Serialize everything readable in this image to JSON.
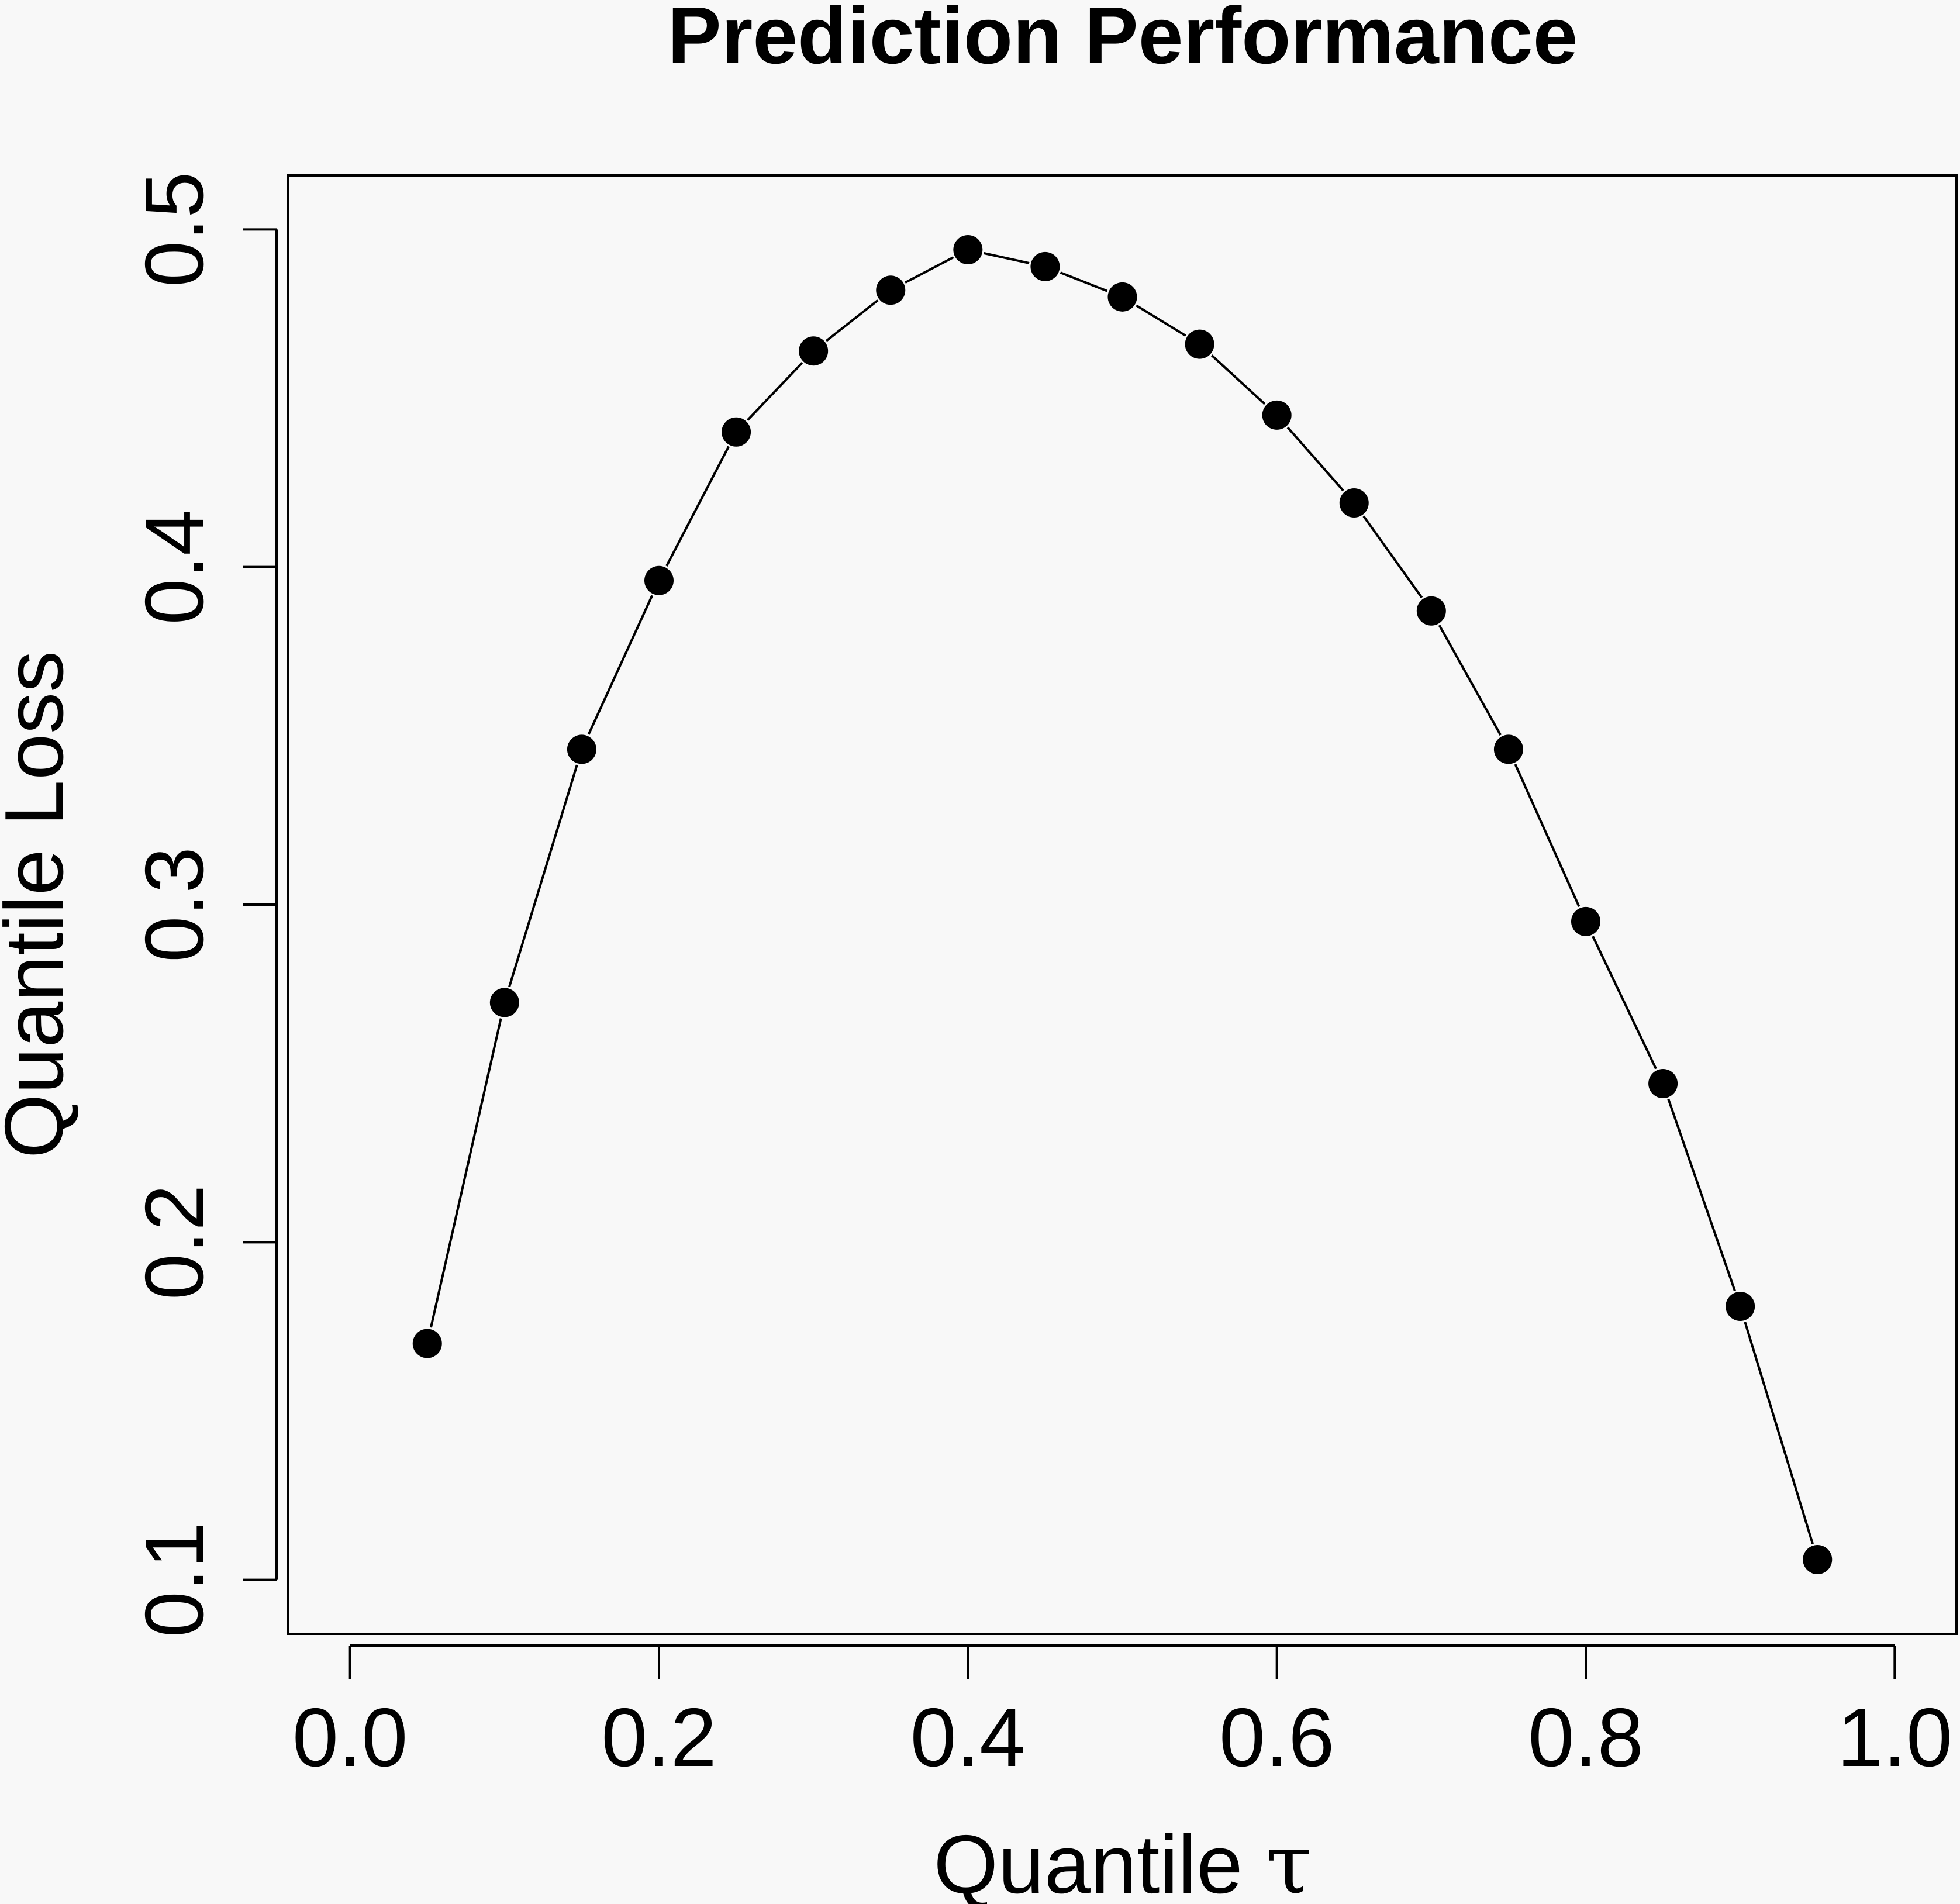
{
  "chart_data": {
    "type": "line",
    "title": "Prediction Performance",
    "xlabel": "Quantile τ",
    "ylabel": "Quantile Loss",
    "xlim": [
      -0.04,
      1.04
    ],
    "ylim": [
      0.084,
      0.516
    ],
    "x_ticks": [
      0.0,
      0.2,
      0.4,
      0.6,
      0.8,
      1.0
    ],
    "x_tick_labels": [
      "0.0",
      "0.2",
      "0.4",
      "0.6",
      "0.8",
      "1.0"
    ],
    "y_ticks": [
      0.1,
      0.2,
      0.3,
      0.4,
      0.5
    ],
    "y_tick_labels": [
      "0.1",
      "0.2",
      "0.3",
      "0.4",
      "0.5"
    ],
    "grid": false,
    "legend": "none",
    "marker": "filled-circle",
    "line_color": "#000000",
    "marker_color": "#000000",
    "background_color": "#f8f8f8",
    "series": [
      {
        "x": [
          0.05,
          0.1,
          0.15,
          0.2,
          0.25,
          0.3,
          0.35,
          0.4,
          0.45,
          0.5,
          0.55,
          0.6,
          0.65,
          0.7,
          0.75,
          0.8,
          0.85,
          0.9,
          0.95
        ],
        "y": [
          0.17,
          0.271,
          0.346,
          0.396,
          0.44,
          0.464,
          0.482,
          0.494,
          0.489,
          0.48,
          0.466,
          0.445,
          0.419,
          0.387,
          0.346,
          0.295,
          0.247,
          0.181,
          0.106
        ]
      }
    ]
  }
}
